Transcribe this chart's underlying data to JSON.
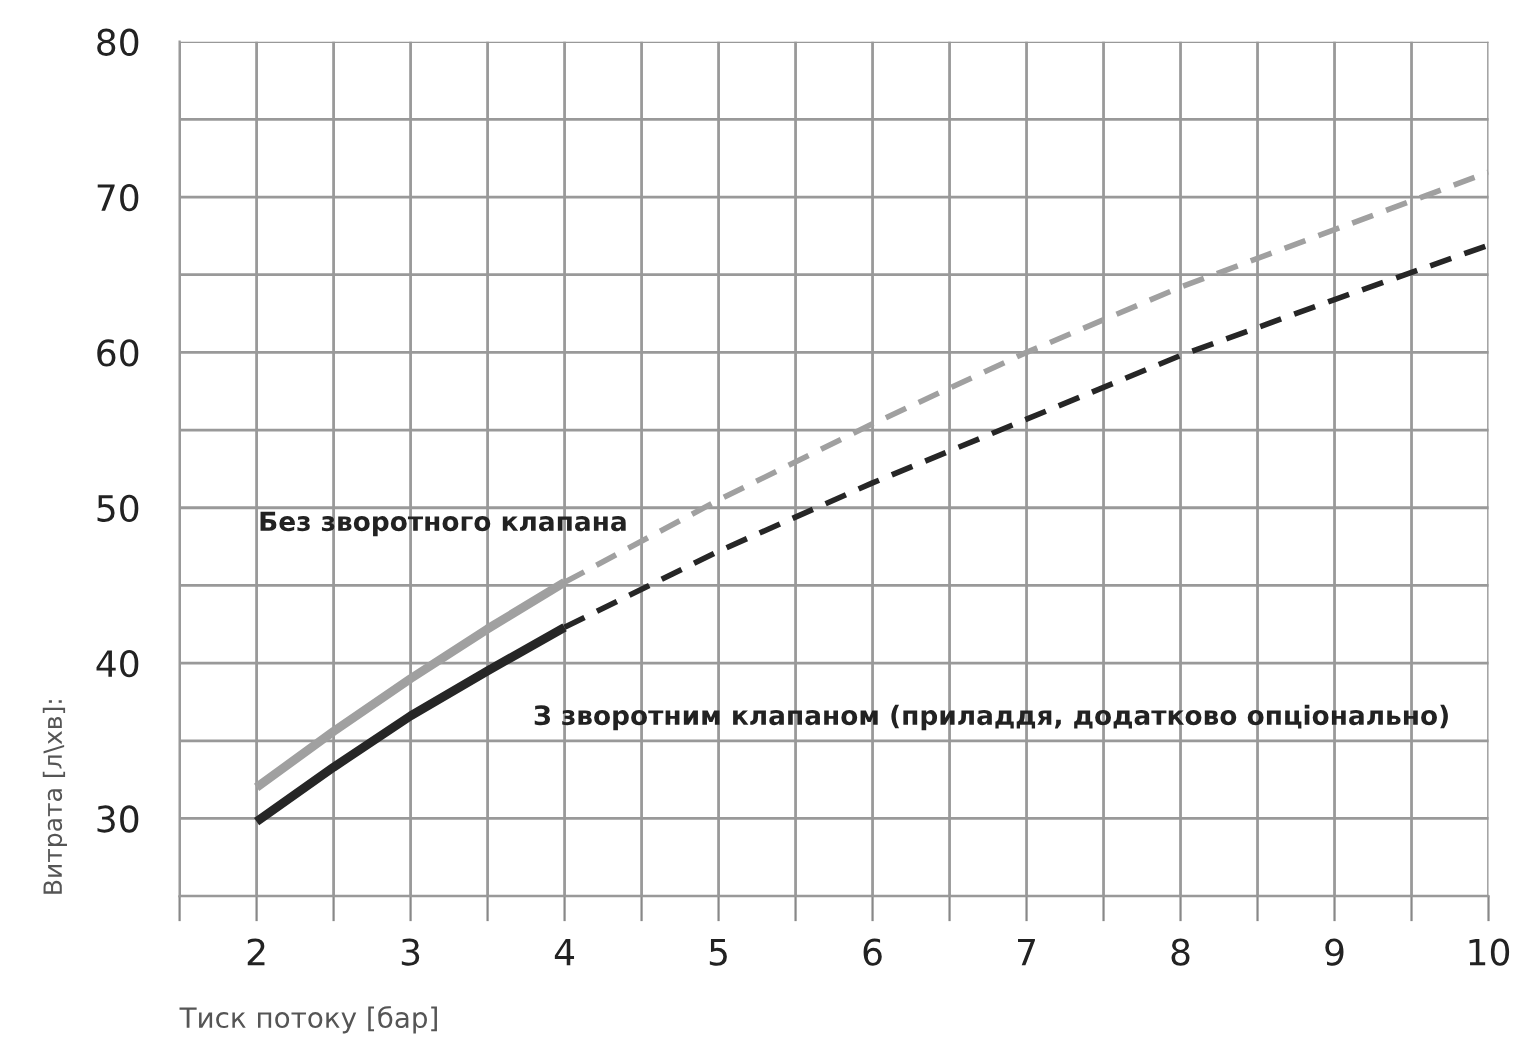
{
  "chart_data": {
    "type": "line",
    "xlabel": "Тиск потоку [бар]",
    "ylabel": "Витрата [л\\хв]:",
    "xlim": [
      1.5,
      10
    ],
    "ylim": [
      25,
      80
    ],
    "xticks": [
      {
        "value": 1.5,
        "label": null
      },
      2,
      {
        "value": 2.5,
        "label": null
      },
      3,
      {
        "value": 3.5,
        "label": null
      },
      4,
      {
        "value": 4.5,
        "label": null
      },
      5,
      {
        "value": 5.5,
        "label": null
      },
      6,
      {
        "value": 6.5,
        "label": null
      },
      7,
      {
        "value": 7.5,
        "label": null
      },
      8,
      {
        "value": 8.5,
        "label": null
      },
      9,
      {
        "value": 9.5,
        "label": null
      },
      10
    ],
    "yticks": [
      {
        "value": 25,
        "label": null
      },
      30,
      {
        "value": 35,
        "label": null
      },
      40,
      {
        "value": 45,
        "label": null
      },
      50,
      {
        "value": 55,
        "label": null
      },
      60,
      {
        "value": 65,
        "label": null
      },
      70,
      {
        "value": 75,
        "label": null
      },
      80
    ],
    "grid": true,
    "legend": false,
    "annotations": [
      "Без зворотного клапана",
      "З зворотним клапаном (приладдя, додатково опціонально)"
    ],
    "series": [
      {
        "color": "#a0a0a0",
        "line_style": "solid",
        "x": [
          2,
          2.5,
          3,
          3.5,
          4
        ],
        "values": [
          32,
          35.6,
          39,
          42.2,
          45.2
        ]
      },
      {
        "color": "#a0a0a0",
        "line_style": "dashed",
        "x": [
          4,
          5,
          6,
          7,
          8,
          9,
          10
        ],
        "values": [
          45.2,
          50.5,
          55.4,
          60,
          64.2,
          67.9,
          71.6
        ]
      },
      {
        "color": "#262626",
        "line_style": "solid",
        "x": [
          2,
          2.5,
          3,
          3.5,
          4
        ],
        "values": [
          29.8,
          33.3,
          36.6,
          39.5,
          42.3
        ]
      },
      {
        "color": "#262626",
        "line_style": "dashed",
        "x": [
          4,
          5,
          6,
          7,
          8,
          9,
          10
        ],
        "values": [
          42.3,
          47.2,
          51.6,
          55.7,
          59.8,
          63.4,
          66.9
        ]
      }
    ]
  }
}
